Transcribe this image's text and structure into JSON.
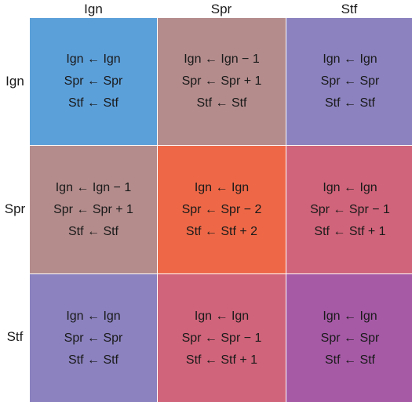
{
  "columns": [
    "Ign",
    "Spr",
    "Stf"
  ],
  "rows": [
    "Ign",
    "Spr",
    "Stf"
  ],
  "cells": [
    [
      {
        "color": "#5ca0da",
        "rules": [
          "Ign ← Ign",
          "Spr ← Spr",
          "Stf ← Stf"
        ]
      },
      {
        "color": "#b48c8c",
        "rules": [
          "Ign ← Ign − 1",
          "Spr ← Spr + 1",
          "Stf ← Stf"
        ]
      },
      {
        "color": "#8b82bf",
        "rules": [
          "Ign ← Ign",
          "Spr ← Spr",
          "Stf ← Stf"
        ]
      }
    ],
    [
      {
        "color": "#b48c8c",
        "rules": [
          "Ign ← Ign − 1",
          "Spr ← Spr + 1",
          "Stf ← Stf"
        ]
      },
      {
        "color": "#ee6847",
        "rules": [
          "Ign ← Ign",
          "Spr ← Spr − 2",
          "Stf ← Stf + 2"
        ]
      },
      {
        "color": "#d0647a",
        "rules": [
          "Ign ← Ign",
          "Spr ← Spr − 1",
          "Stf ← Stf + 1"
        ]
      }
    ],
    [
      {
        "color": "#8b82bf",
        "rules": [
          "Ign ← Ign",
          "Spr ← Spr",
          "Stf ← Stf"
        ]
      },
      {
        "color": "#d0647a",
        "rules": [
          "Ign ← Ign",
          "Spr ← Spr − 1",
          "Stf ← Stf + 1"
        ]
      },
      {
        "color": "#a65aa6",
        "rules": [
          "Ign ← Ign",
          "Spr ← Spr",
          "Stf ← Stf"
        ]
      }
    ]
  ]
}
